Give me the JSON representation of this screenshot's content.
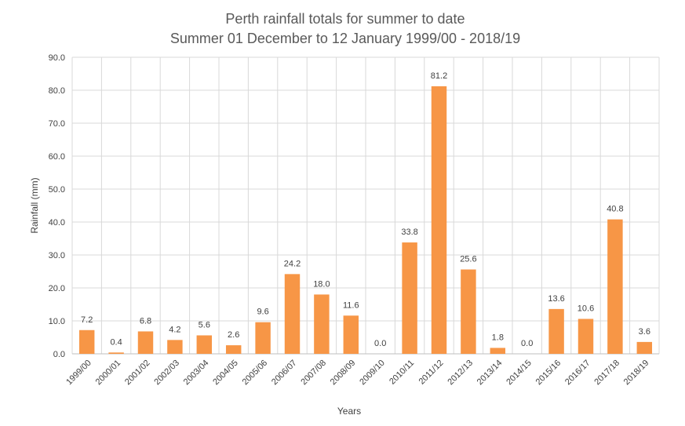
{
  "chart_data": {
    "type": "bar",
    "title": "Perth rainfall totals for summer to date",
    "subtitle": "Summer 01 December to 12 January 1999/00 - 2018/19",
    "xlabel": "Years",
    "ylabel": "Rainfall (mm)",
    "ylim": [
      0,
      90
    ],
    "yticks": [
      "0.0",
      "10.0",
      "20.0",
      "30.0",
      "40.0",
      "50.0",
      "60.0",
      "70.0",
      "80.0",
      "90.0"
    ],
    "grid": true,
    "bar_color": "#F79646",
    "categories": [
      "1999/00",
      "2000/01",
      "2001/02",
      "2002/03",
      "2003/04",
      "2004/05",
      "2005/06",
      "2006/07",
      "2007/08",
      "2008/09",
      "2009/10",
      "2010/11",
      "2011/12",
      "2012/13",
      "2013/14",
      "2014/15",
      "2015/16",
      "2016/17",
      "2017/18",
      "2018/19"
    ],
    "values": [
      7.2,
      0.4,
      6.8,
      4.2,
      5.6,
      2.6,
      9.6,
      24.2,
      18.0,
      11.6,
      0.0,
      33.8,
      81.2,
      25.6,
      1.8,
      0.0,
      13.6,
      10.6,
      40.8,
      3.6
    ],
    "value_labels": [
      "7.2",
      "0.4",
      "6.8",
      "4.2",
      "5.6",
      "2.6",
      "9.6",
      "24.2",
      "18.0",
      "11.6",
      "0.0",
      "33.8",
      "81.2",
      "25.6",
      "1.8",
      "0.0",
      "13.6",
      "10.6",
      "40.8",
      "3.6"
    ]
  }
}
